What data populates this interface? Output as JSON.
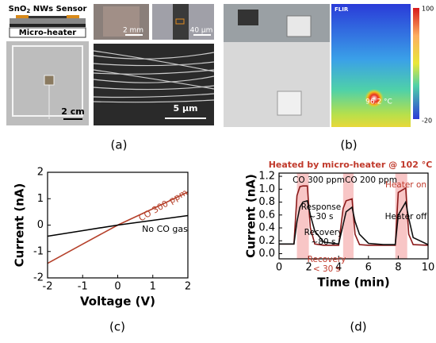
{
  "panel_a": {
    "label": "(a)",
    "sensor_label": {
      "base": "SnO",
      "sub": "2",
      "rest": " NWs Sensor"
    },
    "heater_label": "Micro-heater",
    "scale_bars": [
      "2 cm",
      "2 mm",
      "40 μm",
      "5 μm"
    ]
  },
  "panel_b": {
    "label": "(b)",
    "camera_brand": "FLIR",
    "temperature": "96.2 °C",
    "colorbar_max": "100",
    "colorbar_min": "-20"
  },
  "chart_data": [
    {
      "type": "line",
      "label": "(c)",
      "x_label": "Voltage (V)",
      "y_label": "Current (nA)",
      "xlim": [
        -2,
        2
      ],
      "ylim": [
        -2,
        2
      ],
      "xticks": [
        -2,
        -1,
        0,
        1,
        2
      ],
      "yticks": [
        -2,
        -1,
        0,
        1,
        2
      ],
      "x": [
        -2,
        -1,
        0,
        1,
        2
      ],
      "series": [
        {
          "name": "CO 300 ppm",
          "color": "#b5402a",
          "values": [
            -1.45,
            -0.72,
            0,
            0.62,
            1.25
          ]
        },
        {
          "name": "No CO gas",
          "color": "#000000",
          "values": [
            -0.42,
            -0.21,
            0,
            0.18,
            0.36
          ]
        }
      ]
    },
    {
      "type": "line",
      "label": "(d)",
      "title": "Heated by micro-heater @ 102 °C",
      "title_color": "#c0392b",
      "x_label": "Time (min)",
      "y_label": "Current (nA)",
      "xlim": [
        0,
        10
      ],
      "ylim": [
        -0.08,
        1.25
      ],
      "xticks": [
        0,
        2,
        4,
        6,
        8,
        10
      ],
      "yticks": [
        {
          "value": 0,
          "label": "0.0"
        },
        0.2,
        0.4,
        0.6,
        0.8,
        {
          "value": 1,
          "label": "1.0"
        },
        1.2
      ],
      "shaded_regions": [
        [
          1.2,
          2.0
        ],
        [
          4.3,
          5.0
        ],
        [
          7.8,
          8.6
        ]
      ],
      "shade_color": "#f6b3b3",
      "x": [
        0,
        0.5,
        1,
        1.2,
        1.4,
        1.6,
        1.9,
        2.1,
        2.4,
        3,
        4,
        4.3,
        4.5,
        4.9,
        5.1,
        5.4,
        6,
        7,
        7.8,
        8,
        8.5,
        8.7,
        9,
        10
      ],
      "series": [
        {
          "color": "#8b1a1a",
          "values": [
            0.15,
            0.15,
            0.15,
            0.9,
            1.04,
            1.05,
            1.05,
            0.4,
            0.15,
            0.13,
            0.13,
            0.7,
            0.82,
            0.85,
            0.3,
            0.14,
            0.13,
            0.13,
            0.13,
            0.95,
            1.02,
            0.3,
            0.14,
            0.13
          ]
        },
        {
          "color": "#111111",
          "values": [
            0.15,
            0.15,
            0.15,
            0.5,
            0.72,
            0.8,
            0.82,
            0.6,
            0.35,
            0.18,
            0.15,
            0.45,
            0.65,
            0.72,
            0.5,
            0.3,
            0.16,
            0.14,
            0.14,
            0.6,
            0.8,
            0.55,
            0.25,
            0.14
          ]
        }
      ],
      "annotations": [
        {
          "text": "CO 300 ppm",
          "color": "#000000"
        },
        {
          "text": "CO 200 ppm",
          "color": "#000000"
        },
        {
          "text": "Response",
          "color": "#000000"
        },
        {
          "text": "~30 s",
          "color": "#000000"
        },
        {
          "text": "Recovery",
          "color": "#000000"
        },
        {
          "text": "~80 s",
          "color": "#000000"
        },
        {
          "text": "Recovery",
          "color": "#c0392b"
        },
        {
          "text": "< 30 s",
          "color": "#c0392b"
        },
        {
          "text": "Heater on",
          "color": "#c0392b"
        },
        {
          "text": "Heater off",
          "color": "#000000"
        }
      ]
    }
  ]
}
